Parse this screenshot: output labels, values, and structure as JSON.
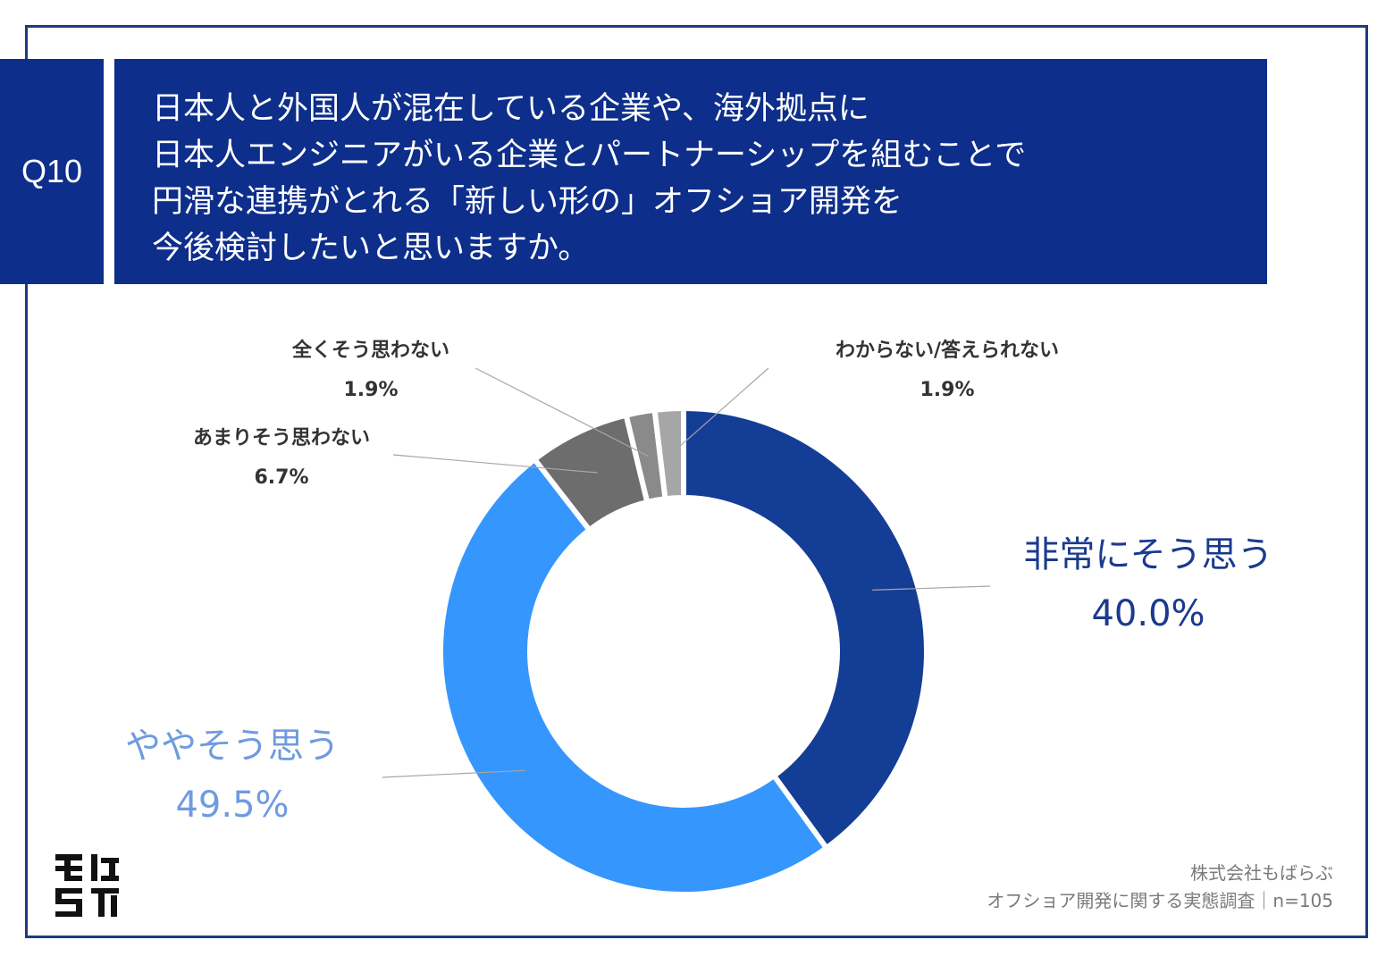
{
  "question": {
    "tag": "Q10",
    "lines": [
      "日本人と外国人が混在している企業や、海外拠点に",
      "日本人エンジニアがいる企業とパートナーシップを組むことで",
      "円滑な連携がとれる「新しい形の」オフショア開発を",
      "今後検討したいと思いますか。"
    ]
  },
  "colors": {
    "frame": "#1f3a80",
    "header_bg": "#0d2e8a",
    "very_much": "#143d96",
    "somewhat": "#3596fd",
    "not_really": "#6d6d6d",
    "not_at_all": "#8a8a8a",
    "unknown": "#a6a6a6"
  },
  "chart_data": {
    "type": "pie",
    "donut": true,
    "categories": [
      "非常にそう思う",
      "ややそう思う",
      "あまりそう思わない",
      "全くそう思わない",
      "わからない/答えられない"
    ],
    "values": [
      40.0,
      49.5,
      6.7,
      1.9,
      1.9
    ],
    "value_labels": [
      "40.0%",
      "49.5%",
      "6.7%",
      "1.9%",
      "1.9%"
    ],
    "title": "",
    "legend": "none"
  },
  "footer": {
    "company": "株式会社もばらぶ",
    "survey": "オフショア開発に関する実態調査｜n=105",
    "logo_text": "もばらぶ"
  }
}
